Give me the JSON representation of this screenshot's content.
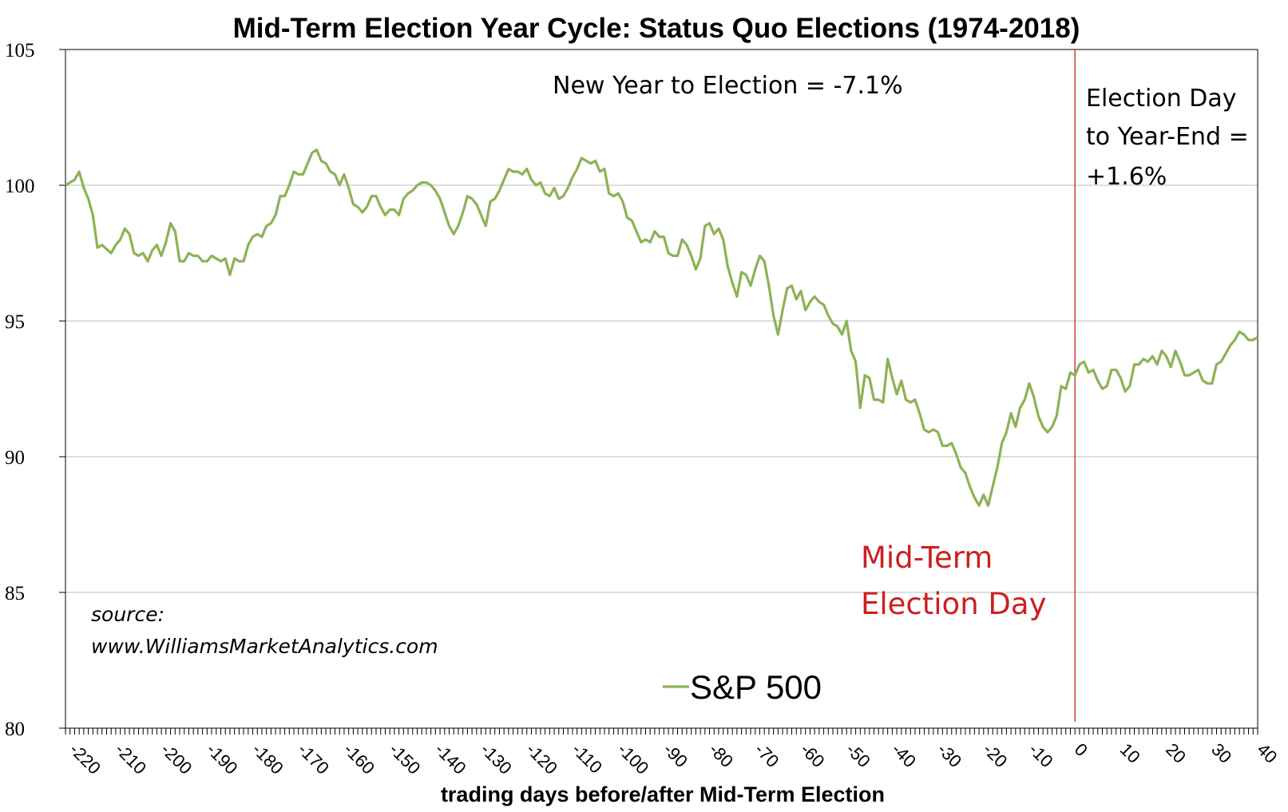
{
  "chart_data": {
    "type": "line",
    "title": "Mid-Term Election Year Cycle: Status Quo Elections (1974-2018)",
    "xlabel": "trading days before/after Mid-Term Election",
    "ylabel": "",
    "xlim": [
      -221,
      40
    ],
    "ylim": [
      80,
      105
    ],
    "yticks": [
      80,
      85,
      90,
      95,
      100,
      105
    ],
    "xticks": [
      -220,
      -210,
      -200,
      -190,
      -180,
      -170,
      -160,
      -150,
      -140,
      -130,
      -120,
      -110,
      -100,
      -90,
      -80,
      -70,
      -60,
      -50,
      -40,
      -30,
      -20,
      -10,
      0,
      10,
      20,
      30,
      40
    ],
    "grid": "horizontal",
    "legend": {
      "position": "bottom-center"
    },
    "series": [
      {
        "name": "S&P 500",
        "color": "#8db255",
        "points": [
          [
            -221,
            100.0
          ],
          [
            -219,
            100.2
          ],
          [
            -218,
            100.5
          ],
          [
            -217,
            99.9
          ],
          [
            -216,
            99.5
          ],
          [
            -215,
            98.9
          ],
          [
            -214,
            97.7
          ],
          [
            -213,
            97.8
          ],
          [
            -211,
            97.5
          ],
          [
            -210,
            97.8
          ],
          [
            -209,
            98.0
          ],
          [
            -208,
            98.4
          ],
          [
            -207,
            98.2
          ],
          [
            -206,
            97.5
          ],
          [
            -205,
            97.4
          ],
          [
            -204,
            97.5
          ],
          [
            -203,
            97.2
          ],
          [
            -202,
            97.6
          ],
          [
            -201,
            97.8
          ],
          [
            -200,
            97.4
          ],
          [
            -199,
            97.9
          ],
          [
            -198,
            98.6
          ],
          [
            -197,
            98.3
          ],
          [
            -196,
            97.2
          ],
          [
            -195,
            97.2
          ],
          [
            -194,
            97.5
          ],
          [
            -193,
            97.4
          ],
          [
            -192,
            97.4
          ],
          [
            -191,
            97.2
          ],
          [
            -190,
            97.2
          ],
          [
            -189,
            97.4
          ],
          [
            -188,
            97.3
          ],
          [
            -187,
            97.2
          ],
          [
            -186,
            97.3
          ],
          [
            -185,
            96.7
          ],
          [
            -184,
            97.3
          ],
          [
            -183,
            97.2
          ],
          [
            -182,
            97.2
          ],
          [
            -181,
            97.8
          ],
          [
            -180,
            98.1
          ],
          [
            -179,
            98.2
          ],
          [
            -178,
            98.1
          ],
          [
            -177,
            98.5
          ],
          [
            -176,
            98.6
          ],
          [
            -175,
            98.9
          ],
          [
            -174,
            99.6
          ],
          [
            -173,
            99.6
          ],
          [
            -172,
            100.0
          ],
          [
            -171,
            100.5
          ],
          [
            -170,
            100.4
          ],
          [
            -169,
            100.4
          ],
          [
            -168,
            100.8
          ],
          [
            -167,
            101.2
          ],
          [
            -166,
            101.3
          ],
          [
            -165,
            100.9
          ],
          [
            -164,
            100.8
          ],
          [
            -163,
            100.5
          ],
          [
            -162,
            100.4
          ],
          [
            -161,
            100.0
          ],
          [
            -160,
            100.4
          ],
          [
            -159,
            99.9
          ],
          [
            -158,
            99.3
          ],
          [
            -157,
            99.2
          ],
          [
            -156,
            99.0
          ],
          [
            -155,
            99.2
          ],
          [
            -154,
            99.6
          ],
          [
            -153,
            99.6
          ],
          [
            -152,
            99.2
          ],
          [
            -151,
            98.9
          ],
          [
            -150,
            99.1
          ],
          [
            -149,
            99.1
          ],
          [
            -148,
            98.9
          ],
          [
            -147,
            99.5
          ],
          [
            -146,
            99.7
          ],
          [
            -145,
            99.8
          ],
          [
            -144,
            100.0
          ],
          [
            -143,
            100.1
          ],
          [
            -142,
            100.1
          ],
          [
            -141,
            100.0
          ],
          [
            -140,
            99.8
          ],
          [
            -139,
            99.5
          ],
          [
            -138,
            99.0
          ],
          [
            -137,
            98.5
          ],
          [
            -136,
            98.2
          ],
          [
            -135,
            98.5
          ],
          [
            -134,
            99.0
          ],
          [
            -133,
            99.6
          ],
          [
            -132,
            99.5
          ],
          [
            -131,
            99.3
          ],
          [
            -130,
            98.9
          ],
          [
            -129,
            98.5
          ],
          [
            -128,
            99.4
          ],
          [
            -127,
            99.5
          ],
          [
            -126,
            99.8
          ],
          [
            -125,
            100.2
          ],
          [
            -124,
            100.6
          ],
          [
            -123,
            100.5
          ],
          [
            -122,
            100.5
          ],
          [
            -121,
            100.4
          ],
          [
            -120,
            100.6
          ],
          [
            -119,
            100.2
          ],
          [
            -118,
            100.0
          ],
          [
            -117,
            100.1
          ],
          [
            -116,
            99.7
          ],
          [
            -115,
            99.6
          ],
          [
            -114,
            99.9
          ],
          [
            -113,
            99.5
          ],
          [
            -112,
            99.6
          ],
          [
            -111,
            99.9
          ],
          [
            -110,
            100.3
          ],
          [
            -109,
            100.6
          ],
          [
            -108,
            101.0
          ],
          [
            -107,
            100.9
          ],
          [
            -106,
            100.8
          ],
          [
            -105,
            100.9
          ],
          [
            -104,
            100.5
          ],
          [
            -103,
            100.6
          ],
          [
            -102,
            99.7
          ],
          [
            -101,
            99.6
          ],
          [
            -100,
            99.7
          ],
          [
            -99,
            99.4
          ],
          [
            -98,
            98.8
          ],
          [
            -97,
            98.7
          ],
          [
            -96,
            98.3
          ],
          [
            -95,
            97.9
          ],
          [
            -94,
            98.0
          ],
          [
            -93,
            97.9
          ],
          [
            -92,
            98.3
          ],
          [
            -91,
            98.1
          ],
          [
            -90,
            98.1
          ],
          [
            -89,
            97.5
          ],
          [
            -88,
            97.4
          ],
          [
            -87,
            97.4
          ],
          [
            -86,
            98.0
          ],
          [
            -85,
            97.8
          ],
          [
            -84,
            97.4
          ],
          [
            -83,
            96.9
          ],
          [
            -82,
            97.3
          ],
          [
            -81,
            98.5
          ],
          [
            -80,
            98.6
          ],
          [
            -79,
            98.2
          ],
          [
            -78,
            98.4
          ],
          [
            -77,
            98.0
          ],
          [
            -76,
            97.0
          ],
          [
            -75,
            96.4
          ],
          [
            -74,
            95.9
          ],
          [
            -73,
            96.8
          ],
          [
            -72,
            96.7
          ],
          [
            -71,
            96.3
          ],
          [
            -70,
            96.9
          ],
          [
            -69,
            97.4
          ],
          [
            -68,
            97.2
          ],
          [
            -67,
            96.3
          ],
          [
            -66,
            95.2
          ],
          [
            -65,
            94.5
          ],
          [
            -64,
            95.4
          ],
          [
            -63,
            96.2
          ],
          [
            -62,
            96.3
          ],
          [
            -61,
            95.8
          ],
          [
            -60,
            96.1
          ],
          [
            -59,
            95.4
          ],
          [
            -58,
            95.7
          ],
          [
            -57,
            95.9
          ],
          [
            -56,
            95.7
          ],
          [
            -55,
            95.6
          ],
          [
            -54,
            95.2
          ],
          [
            -53,
            94.9
          ],
          [
            -52,
            94.8
          ],
          [
            -51,
            94.5
          ],
          [
            -50,
            95.0
          ],
          [
            -49,
            93.9
          ],
          [
            -48,
            93.5
          ],
          [
            -47,
            91.8
          ],
          [
            -46,
            93.0
          ],
          [
            -45,
            92.9
          ],
          [
            -44,
            92.1
          ],
          [
            -43,
            92.1
          ],
          [
            -42,
            92.0
          ],
          [
            -41,
            93.6
          ],
          [
            -40,
            92.9
          ],
          [
            -39,
            92.3
          ],
          [
            -38,
            92.8
          ],
          [
            -37,
            92.1
          ],
          [
            -36,
            92.0
          ],
          [
            -35,
            92.1
          ],
          [
            -34,
            91.6
          ],
          [
            -33,
            91.0
          ],
          [
            -32,
            90.9
          ],
          [
            -31,
            91.0
          ],
          [
            -30,
            90.9
          ],
          [
            -29,
            90.4
          ],
          [
            -28,
            90.4
          ],
          [
            -27,
            90.5
          ],
          [
            -26,
            90.1
          ],
          [
            -25,
            89.6
          ],
          [
            -24,
            89.4
          ],
          [
            -23,
            88.9
          ],
          [
            -22,
            88.5
          ],
          [
            -21,
            88.2
          ],
          [
            -20,
            88.6
          ],
          [
            -19,
            88.2
          ],
          [
            -18,
            88.9
          ],
          [
            -17,
            89.6
          ],
          [
            -16,
            90.5
          ],
          [
            -15,
            90.9
          ],
          [
            -14,
            91.6
          ],
          [
            -13,
            91.1
          ],
          [
            -12,
            91.8
          ],
          [
            -11,
            92.1
          ],
          [
            -10,
            92.7
          ],
          [
            -9,
            92.2
          ],
          [
            -8,
            91.5
          ],
          [
            -7,
            91.1
          ],
          [
            -6,
            90.9
          ],
          [
            -5,
            91.1
          ],
          [
            -4,
            91.5
          ],
          [
            -3,
            92.6
          ],
          [
            -2,
            92.5
          ],
          [
            -1,
            93.1
          ],
          [
            0,
            93.0
          ],
          [
            1,
            93.4
          ],
          [
            2,
            93.5
          ],
          [
            3,
            93.1
          ],
          [
            4,
            93.2
          ],
          [
            5,
            92.8
          ],
          [
            6,
            92.5
          ],
          [
            7,
            92.6
          ],
          [
            8,
            93.2
          ],
          [
            9,
            93.2
          ],
          [
            10,
            92.9
          ],
          [
            11,
            92.4
          ],
          [
            12,
            92.6
          ],
          [
            13,
            93.4
          ],
          [
            14,
            93.4
          ],
          [
            15,
            93.6
          ],
          [
            16,
            93.5
          ],
          [
            17,
            93.7
          ],
          [
            18,
            93.4
          ],
          [
            19,
            93.9
          ],
          [
            20,
            93.7
          ],
          [
            21,
            93.3
          ],
          [
            22,
            93.9
          ],
          [
            23,
            93.5
          ],
          [
            24,
            93.0
          ],
          [
            25,
            93.0
          ],
          [
            26,
            93.1
          ],
          [
            27,
            93.2
          ],
          [
            28,
            92.8
          ],
          [
            29,
            92.7
          ],
          [
            30,
            92.7
          ],
          [
            31,
            93.4
          ],
          [
            32,
            93.5
          ],
          [
            33,
            93.8
          ],
          [
            34,
            94.1
          ],
          [
            35,
            94.3
          ],
          [
            36,
            94.6
          ],
          [
            37,
            94.5
          ],
          [
            38,
            94.3
          ],
          [
            39,
            94.3
          ],
          [
            40,
            94.4
          ]
        ]
      }
    ],
    "election_day_marker": {
      "x": 0,
      "color": "#cc1f1f"
    },
    "annotations": {
      "new_year": "New Year to Election = -7.1%",
      "post_election": [
        "Election Day",
        "to Year-End =",
        "+1.6%"
      ],
      "midterm_label": [
        "Mid-Term",
        "Election Day"
      ],
      "source": [
        "source:",
        "www.WilliamsMarketAnalytics.com"
      ]
    }
  }
}
